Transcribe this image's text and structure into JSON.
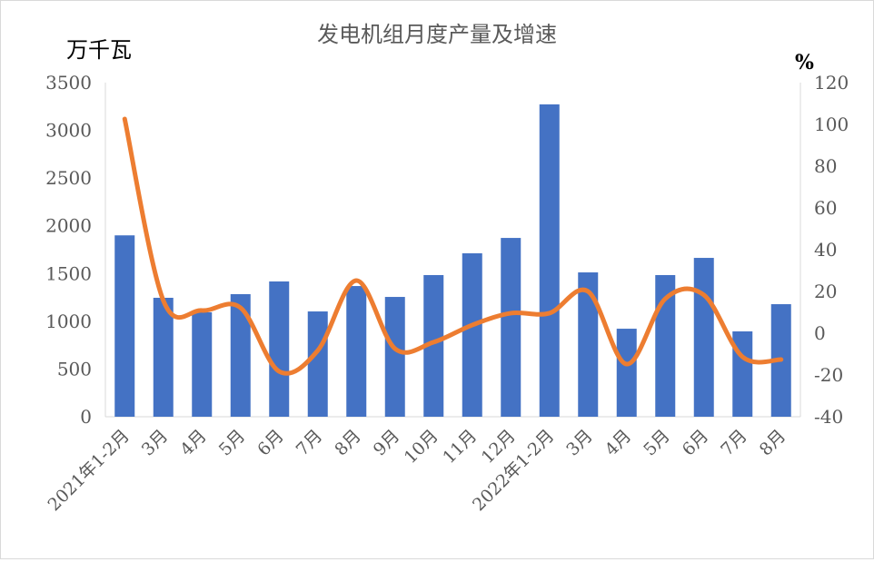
{
  "chart_data": {
    "type": "bar+line",
    "title": "发电机组月度产量及增速",
    "ylabel_left": "万千瓦",
    "ylabel_right": "%",
    "ylim_left": [
      0,
      3500
    ],
    "yticks_left": [
      0,
      500,
      1000,
      1500,
      2000,
      2500,
      3000,
      3500
    ],
    "ylim_right": [
      -40,
      120
    ],
    "yticks_right": [
      -40,
      -20,
      0,
      20,
      40,
      60,
      80,
      100,
      120
    ],
    "categories": [
      "2021年1-2月",
      "3月",
      "4月",
      "5月",
      "6月",
      "7月",
      "8月",
      "9月",
      "10月",
      "11月",
      "12月",
      "2022年1-2月",
      "3月",
      "4月",
      "5月",
      "6月",
      "7月",
      "8月"
    ],
    "series": [
      {
        "type": "bar",
        "axis": "left",
        "color": "#4472C4",
        "values": [
          1900,
          1246,
          1094,
          1284,
          1417,
          1103,
          1369,
          1255,
          1484,
          1712,
          1873,
          3272,
          1512,
          922,
          1484,
          1664,
          894,
          1179
        ]
      },
      {
        "type": "line",
        "axis": "right",
        "color": "#ED7D31",
        "smooth": true,
        "values": [
          102.6,
          15.7,
          10.9,
          12.2,
          -18.3,
          -8.3,
          25.2,
          -7.4,
          -4.3,
          3.9,
          9.6,
          9.6,
          20.0,
          -14.8,
          16.5,
          18.3,
          -11.3,
          -12.6
        ]
      }
    ],
    "grid": false,
    "legend": "none"
  }
}
